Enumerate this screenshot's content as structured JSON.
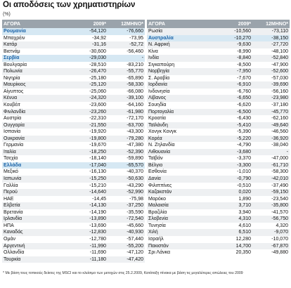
{
  "title": "Οι αποδόσεις των χρηματιστηρίων",
  "subtitle": "(%)",
  "columns": {
    "market": "ΑΓΟΡΑ",
    "ytd": "2009*",
    "m12": "12ΜΗΝΟ*"
  },
  "left_rows": [
    {
      "name": "Ρουμανία",
      "ytd": "-54,120",
      "m12": "-76,660",
      "hl": true
    },
    {
      "name": "Μπαχρέιν",
      "ytd": "-34,92",
      "m12": "-73,95",
      "hl": false
    },
    {
      "name": "Κατάρ",
      "ytd": "-31,16",
      "m12": "-52,72",
      "hl": false
    },
    {
      "name": "Βιετνάμ",
      "ytd": "-30,600",
      "m12": "-56,460",
      "hl": false
    },
    {
      "name": "Σερβία",
      "ytd": "-29,030",
      "m12": "-",
      "hl": true
    },
    {
      "name": "Βουλγαρία",
      "ytd": "-28,510",
      "m12": "-83,210",
      "hl": false
    },
    {
      "name": "Πολωνία",
      "ytd": "-26,470",
      "m12": "-55,770",
      "hl": false
    },
    {
      "name": "Νιγηρία",
      "ytd": "-25,180",
      "m12": "-65,890",
      "hl": false
    },
    {
      "name": "Μαυρίκιος",
      "ytd": "-25,120",
      "m12": "-58,330",
      "hl": false
    },
    {
      "name": "Αίγυπτος",
      "ytd": "-25,060",
      "m12": "-66,080",
      "hl": false
    },
    {
      "name": "Κένυα",
      "ytd": "-24,320",
      "m12": "-39,100",
      "hl": false
    },
    {
      "name": "Κουβέιτ",
      "ytd": "-23,600",
      "m12": "-64,160",
      "hl": false
    },
    {
      "name": "Φινλανδία",
      "ytd": "-23,260",
      "m12": "-61,980",
      "hl": false
    },
    {
      "name": "Αυστρία",
      "ytd": "-22,310",
      "m12": "-72,170",
      "hl": false
    },
    {
      "name": "Ουγγαρία",
      "ytd": "-21,550",
      "m12": "-63,700",
      "hl": false
    },
    {
      "name": "Ισπανία",
      "ytd": "-19,920",
      "m12": "-43,300",
      "hl": false
    },
    {
      "name": "Ουκρανία",
      "ytd": "-19,800",
      "m12": "-79,280",
      "hl": false
    },
    {
      "name": "Γερμανία",
      "ytd": "-19,670",
      "m12": "-47,380",
      "hl": false
    },
    {
      "name": "Ιταλία",
      "ytd": "-18,250",
      "m12": "-52,390",
      "hl": false
    },
    {
      "name": "Τσεχία",
      "ytd": "-18,140",
      "m12": "-59,890",
      "hl": false
    },
    {
      "name": "Ελλάδα",
      "ytd": "-17,040",
      "m12": "-65,570",
      "hl": true
    },
    {
      "name": "Μεξικό",
      "ytd": "-16,130",
      "m12": "-40,370",
      "hl": false
    },
    {
      "name": "Ιαπωνία",
      "ytd": "-15,250",
      "m12": "-50,630",
      "hl": false
    },
    {
      "name": "Γαλλία",
      "ytd": "-15,210",
      "m12": "-43,290",
      "hl": false
    },
    {
      "name": "Περού",
      "ytd": "-14,640",
      "m12": "-52,990",
      "hl": false
    },
    {
      "name": "ΗΑΕ",
      "ytd": "-14,45",
      "m12": "-75,98",
      "hl": false
    },
    {
      "name": "Ελβετία",
      "ytd": "-14,130",
      "m12": "-37,250",
      "hl": false
    },
    {
      "name": "Βρετανία",
      "ytd": "-14,190",
      "m12": "-35,590",
      "hl": false
    },
    {
      "name": "Ιρλανδία",
      "ytd": "-13,890",
      "m12": "-72,540",
      "hl": false
    },
    {
      "name": "ΗΠΑ",
      "ytd": "-13,690",
      "m12": "-45,660",
      "hl": false
    },
    {
      "name": "Καναδάς",
      "ytd": "-12,830",
      "m12": "-40,930",
      "hl": false
    },
    {
      "name": "Ομάν",
      "ytd": "-12,780",
      "m12": "-57,440",
      "hl": false
    },
    {
      "name": "Αργεντινή",
      "ytd": "-11,990",
      "m12": "-55,200",
      "hl": false
    },
    {
      "name": "Ολλανδία",
      "ytd": "-11,690",
      "m12": "-47,120",
      "hl": false
    },
    {
      "name": "Τουρκία",
      "ytd": "-11,180",
      "m12": "-47,420",
      "hl": false
    }
  ],
  "right_rows": [
    {
      "name": "Ρωσία",
      "ytd": "-10,560",
      "m12": "-73,110",
      "hl": false
    },
    {
      "name": "Αυστραλία",
      "ytd": "-10,270",
      "m12": "-38,150",
      "hl": true
    },
    {
      "name": "Ν. Αφρική",
      "ytd": "-9,630",
      "m12": "-27,720",
      "hl": false
    },
    {
      "name": "Κίνα",
      "ytd": "-8,990",
      "m12": "-48,100",
      "hl": false
    },
    {
      "name": "Ινδία",
      "ytd": "-8,840",
      "m12": "-52,840",
      "hl": false
    },
    {
      "name": "Σιγκαπούρη",
      "ytd": "-8,500",
      "m12": "-47,900",
      "hl": false
    },
    {
      "name": "Νορβηγία",
      "ytd": "-7,950",
      "m12": "-52,600",
      "hl": false
    },
    {
      "name": "Σ. Αραβία",
      "ytd": "-7,670",
      "m12": "-57,030",
      "hl": false
    },
    {
      "name": "Ιορδανία",
      "ytd": "-6,910",
      "m12": "-39,690",
      "hl": false
    },
    {
      "name": "Ινδονησία",
      "ytd": "-6,760",
      "m12": "-56,160",
      "hl": false
    },
    {
      "name": "Λίβανος",
      "ytd": "-6,650",
      "m12": "-23,980",
      "hl": false
    },
    {
      "name": "Σουηδία",
      "ytd": "-6,620",
      "m12": "-37,180",
      "hl": false
    },
    {
      "name": "Πορτογαλία",
      "ytd": "-6,500",
      "m12": "-45,770",
      "hl": false
    },
    {
      "name": "Κροατία",
      "ytd": "-6,430",
      "m12": "-62,160",
      "hl": false
    },
    {
      "name": "Ταϊλάνδη",
      "ytd": "-5,410",
      "m12": "-49,640",
      "hl": false
    },
    {
      "name": "Χονγκ Κονγκ",
      "ytd": "-5,390",
      "m12": "-46,560",
      "hl": false
    },
    {
      "name": "Κορέα",
      "ytd": "-5,220",
      "m12": "-36,920",
      "hl": false
    },
    {
      "name": "Ν. Ζηλανδία",
      "ytd": "-4,790",
      "m12": "-38,040",
      "hl": false
    },
    {
      "name": "Λιθουανία",
      "ytd": "-3,680",
      "m12": "-",
      "hl": false
    },
    {
      "name": "Ταϊβάν",
      "ytd": "-3,370",
      "m12": "-47,000",
      "hl": false
    },
    {
      "name": "Βέλγιο",
      "ytd": "-3,300",
      "m12": "-61,710",
      "hl": false
    },
    {
      "name": "Εσθονία",
      "ytd": "-1,010",
      "m12": "-58,300",
      "hl": false
    },
    {
      "name": "Δανία",
      "ytd": "-0,790",
      "m12": "-42,010",
      "hl": false
    },
    {
      "name": "Φιλιππίνες",
      "ytd": "-0,510",
      "m12": "-37,490",
      "hl": false
    },
    {
      "name": "Καζακστάν",
      "ytd": "0,020",
      "m12": "-59,150",
      "hl": false
    },
    {
      "name": "Μαρόκο",
      "ytd": "1,890",
      "m12": "-23,540",
      "hl": false
    },
    {
      "name": "Μαλαισία",
      "ytd": "3,710",
      "m12": "-35,800",
      "hl": false
    },
    {
      "name": "Βραζιλία",
      "ytd": "3,940",
      "m12": "-41,570",
      "hl": false
    },
    {
      "name": "Σλοβενία",
      "ytd": "4,310",
      "m12": "-56,750",
      "hl": false
    },
    {
      "name": "Τυνησία",
      "ytd": "4,610",
      "m12": "4,320",
      "hl": false
    },
    {
      "name": "Χιλή",
      "ytd": "6,510",
      "m12": "-9,070",
      "hl": false
    },
    {
      "name": "Ισραήλ",
      "ytd": "12,280",
      "m12": "-10,070",
      "hl": false
    },
    {
      "name": "Πακιστάν",
      "ytd": "14,700",
      "m12": "-67,870",
      "hl": false
    },
    {
      "name": "Σρι Λάνκα",
      "ytd": "20,350",
      "m12": "-49,880",
      "hl": false
    }
  ],
  "footnote": "* Με βάση τους τοπικούς δείκτες της MSCI και το κλείσιμο των μετοχών στις 25.2.2009, Κατάταξη πίνακα με βάση τις μεγαλύτερες απώλειες του 2009"
}
